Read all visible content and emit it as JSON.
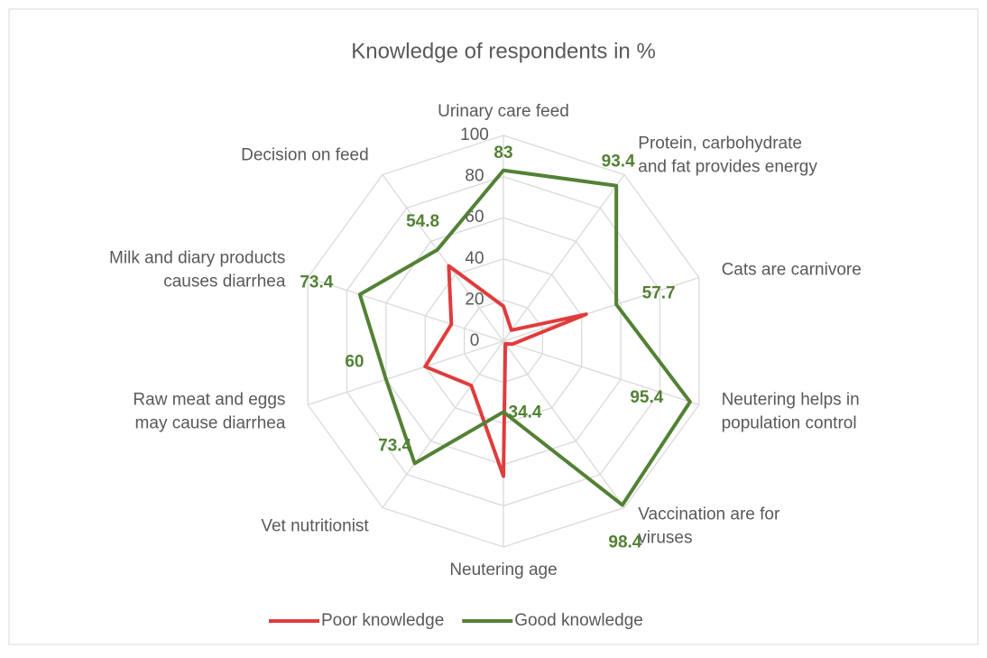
{
  "chart_data": {
    "type": "radar",
    "title": "Knowledge of respondents in %",
    "categories": [
      "Urinary care feed",
      "Protein, carbohydrate\nand fat provides energy",
      "Cats are carnivore",
      "Neutering helps in\npopulation control",
      "Vaccination are for\nviruses",
      "Neutering age",
      "Vet nutritionist",
      "Raw meat and eggs\nmay cause diarrhea",
      "Milk and diary products\ncauses diarrhea",
      "Decision on feed"
    ],
    "series": [
      {
        "name": "Poor knowledge",
        "color": "#e03c3c",
        "values": [
          17,
          6.6,
          42.3,
          4.6,
          1.6,
          65.6,
          26.6,
          40,
          26.6,
          45.2
        ]
      },
      {
        "name": "Good knowledge",
        "color": "#538135",
        "values": [
          83,
          93.4,
          57.7,
          95.4,
          98.4,
          34.4,
          73.4,
          60,
          73.4,
          54.8
        ],
        "data_labels": true
      }
    ],
    "ylim": [
      0,
      100
    ],
    "yticks": [
      0,
      20,
      40,
      60,
      80,
      100
    ],
    "grid": true,
    "legend": "bottom"
  }
}
